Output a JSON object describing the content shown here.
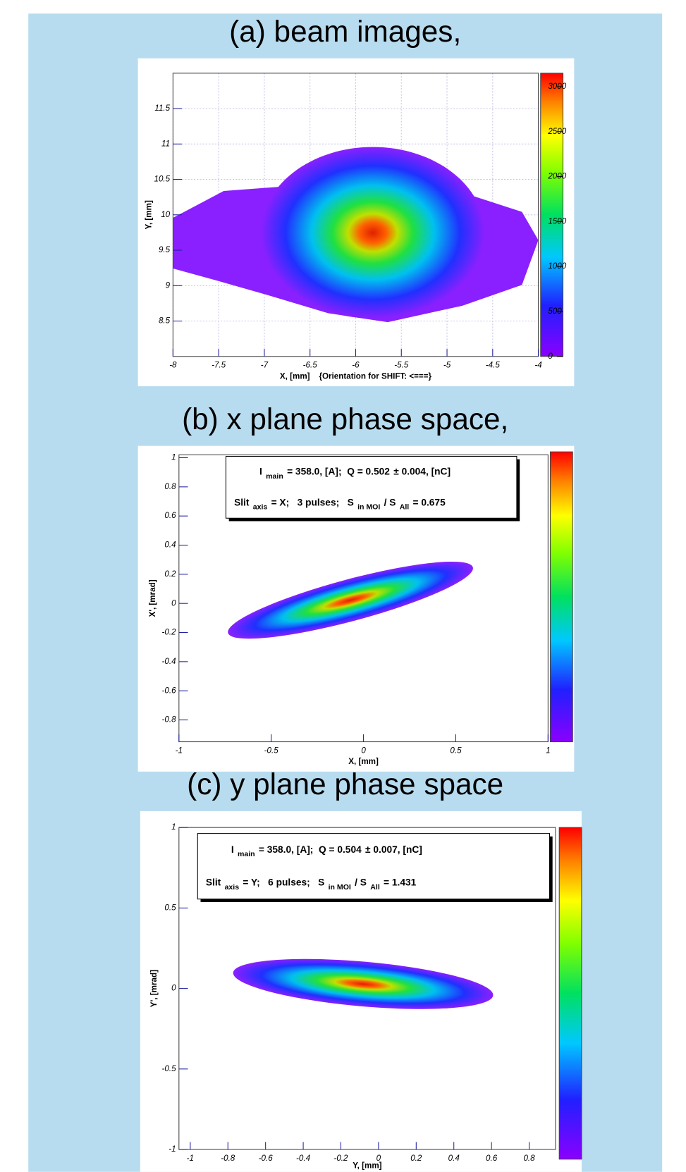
{
  "chart_data": [
    {
      "type": "heatmap",
      "title": "(a) beam images,",
      "xlabel": "X, [mm]    {Orientation for SHIFT: <===}",
      "ylabel": "Y, [mm]",
      "xlim": [
        -8,
        -4
      ],
      "xticks": [
        -8,
        -7.5,
        -7,
        -6.5,
        -6,
        -5.5,
        -5,
        -4.5,
        -4
      ],
      "ylim": [
        8,
        12
      ],
      "yticks": [
        8.5,
        9,
        9.5,
        10,
        10.5,
        11,
        11.5
      ],
      "zlim": [
        0,
        3150
      ],
      "zticks": [
        0,
        500,
        1000,
        1500,
        2000,
        2500,
        3000
      ],
      "grid": true
    },
    {
      "type": "heatmap",
      "title": "(b) x plane phase space,",
      "xlabel": "X, [mm]",
      "ylabel": "X', [mrad]",
      "xlim": [
        -1,
        1
      ],
      "xticks": [
        -1,
        -0.5,
        0,
        0.5,
        1
      ],
      "ylim": [
        -0.95,
        1.02
      ],
      "yticks": [
        -0.8,
        -0.6,
        -0.4,
        -0.2,
        0,
        0.2,
        0.4,
        0.6,
        0.8,
        1
      ],
      "grid": false,
      "legend_lines": [
        [
          {
            "text": "I"
          },
          {
            "text": "main",
            "sub": true
          },
          {
            "text": "= 358.0, [A];  Q = 0.502"
          },
          {
            "text": "± 0.004, [nC]"
          }
        ],
        [
          {
            "text": "Slit"
          },
          {
            "text": "axis",
            "sub": true
          },
          {
            "text": "= X;   3 pulses;   S"
          },
          {
            "text": "in MOI",
            "sub": true
          },
          {
            "text": "/ S"
          },
          {
            "text": "All",
            "sub": true
          },
          {
            "text": "= 0.675"
          }
        ]
      ]
    },
    {
      "type": "heatmap",
      "title": "(c) y plane phase space",
      "xlabel": "Y, [mm]",
      "ylabel": "Y', [mrad]",
      "xlim": [
        -1.06,
        0.94
      ],
      "xticks": [
        -1,
        -0.8,
        -0.6,
        -0.4,
        -0.2,
        0,
        0.2,
        0.4,
        0.6,
        0.8
      ],
      "ylim": [
        -1,
        1
      ],
      "yticks": [
        -1,
        -0.5,
        0,
        0.5,
        1
      ],
      "grid": false,
      "legend_lines": [
        [
          {
            "text": "I"
          },
          {
            "text": "main",
            "sub": true
          },
          {
            "text": "= 358.0, [A];  Q = 0.504"
          },
          {
            "text": "± 0.007, [nC]"
          }
        ],
        [
          {
            "text": "Slit"
          },
          {
            "text": "axis",
            "sub": true
          },
          {
            "text": "= Y;   6 pulses;   S"
          },
          {
            "text": "in MOI",
            "sub": true
          },
          {
            "text": "/ S"
          },
          {
            "text": "All",
            "sub": true
          },
          {
            "text": "= 1.431"
          }
        ]
      ]
    }
  ]
}
